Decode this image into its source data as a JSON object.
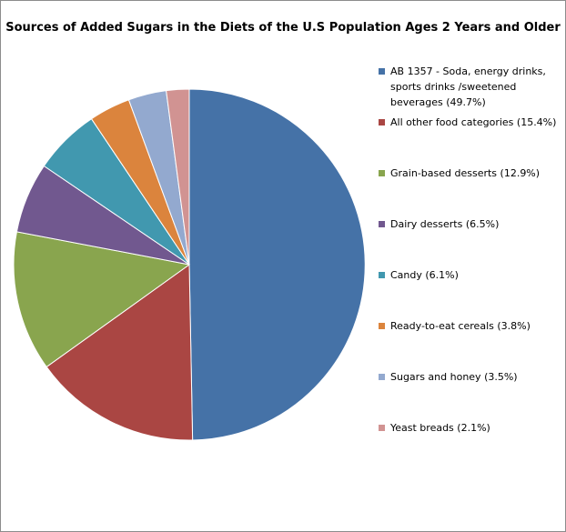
{
  "chart_data": {
    "type": "pie",
    "title": "Sources of Added Sugars in the Diets of the U.S Population Ages 2 Years and Older",
    "legend_position": "right",
    "series": [
      {
        "label": "AB 1357 - Soda, energy drinks, sports drinks /sweetened beverages (49.7%)",
        "value": 49.7,
        "color": "#4572a7"
      },
      {
        "label": "All other food categories (15.4%)",
        "value": 15.4,
        "color": "#aa4643"
      },
      {
        "label": "Grain-based desserts (12.9%)",
        "value": 12.9,
        "color": "#89a54e"
      },
      {
        "label": "Dairy desserts (6.5%)",
        "value": 6.5,
        "color": "#71588f"
      },
      {
        "label": "Candy (6.1%)",
        "value": 6.1,
        "color": "#4198af"
      },
      {
        "label": "Ready-to-eat cereals (3.8%)",
        "value": 3.8,
        "color": "#db843d"
      },
      {
        "label": "Sugars and honey (3.5%)",
        "value": 3.5,
        "color": "#93a9cf"
      },
      {
        "label": "Yeast breads (2.1%)",
        "value": 2.1,
        "color": "#d19392"
      }
    ]
  }
}
